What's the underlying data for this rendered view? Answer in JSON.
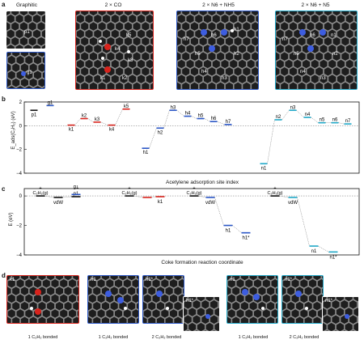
{
  "figure": {
    "panel_labels": [
      "a",
      "b",
      "c",
      "d"
    ],
    "a": {
      "titles": [
        "Graphitic",
        "2 × CO",
        "2 × N6 + NH5",
        "2 × N6 + N5"
      ],
      "graphitic_sites": [
        "p1",
        "g1"
      ],
      "co_sites": [
        "k5",
        "k4",
        "k3",
        "k1",
        "k2"
      ],
      "nh5_sites": [
        "h7",
        "h6",
        "h1",
        "h5",
        "h2",
        "h4",
        "h3"
      ],
      "n5_sites": [
        "n7",
        "n6",
        "n1",
        "n5",
        "n2",
        "n4",
        "n3"
      ]
    },
    "b": {
      "ylabel": "E_ads(C₂H₂) (eV)",
      "xlabel": "Acetylene adsorption site index",
      "ylim": [
        -4,
        2
      ],
      "yticks": [
        "2",
        "0",
        "−2",
        "−4"
      ]
    },
    "c": {
      "ylabel": "E (eV)",
      "xlabel": "Coke formation reaction coordinate",
      "yticks": [
        "0",
        "−2",
        "−4"
      ],
      "annot_defect": "Defect",
      "annot_plus": "+",
      "annot_c2h2": "C₂H₂(g)",
      "annot_vdw": "vdW"
    },
    "d": {
      "captions": [
        "1 C₂H₂ bonded",
        "1 C₂H₂ bonded",
        "2 C₂H₂ bonded",
        "1 C₂H₂ bonded",
        "2 C₂H₂ bonded"
      ],
      "tile_labels": [
        "k1",
        "h1",
        "h1*",
        "h1*",
        "n1",
        "n1*",
        "n1*"
      ]
    },
    "colors": {
      "graphitic": "#2a56c6",
      "co": "#d8231c",
      "nh5": "#2a56c6",
      "n5": "#20a8c8",
      "dark": "#111111"
    }
  },
  "chart_data": [
    {
      "type": "line",
      "title": "",
      "ylabel": "E_ads(C₂H₂) (eV)",
      "xlabel": "Acetylene adsorption site index",
      "ylim": [
        -4,
        2
      ],
      "series": [
        {
          "name": "",
          "color": "#111111",
          "x": [
            "p1"
          ],
          "values": [
            1.3
          ]
        },
        {
          "name": "",
          "color": "#2a56c6",
          "x": [
            "g1"
          ],
          "values": [
            1.7
          ]
        },
        {
          "name": "",
          "color": "#d8231c",
          "x": [
            "k1",
            "k2",
            "k3",
            "k4",
            "k5"
          ],
          "values": [
            0.05,
            0.6,
            0.3,
            0.05,
            1.4
          ]
        },
        {
          "name": "",
          "color": "#2a56c6",
          "x": [
            "h1",
            "h2",
            "h3",
            "h4",
            "h5",
            "h6",
            "h7"
          ],
          "values": [
            -1.9,
            -0.2,
            1.3,
            0.8,
            0.6,
            0.35,
            0.1
          ]
        },
        {
          "name": "",
          "color": "#20a8c8",
          "x": [
            "n1",
            "n2",
            "n3",
            "n4",
            "n5",
            "n6",
            "n7"
          ],
          "values": [
            -3.2,
            0.5,
            1.3,
            0.7,
            0.25,
            0.25,
            0.15
          ]
        }
      ]
    },
    {
      "type": "line",
      "title": "",
      "ylabel": "E (eV)",
      "xlabel": "Coke formation reaction coordinate",
      "ylim": [
        -4,
        0.5
      ],
      "series": [
        {
          "name": "",
          "color": "#111111",
          "labels": [
            "",
            "vdW",
            "p1"
          ],
          "values": [
            0,
            -0.1,
            -0.05
          ]
        },
        {
          "name": "",
          "color": "#2a56c6",
          "labels": [
            "g1"
          ],
          "values": [
            0.1
          ]
        },
        {
          "name": "",
          "color": "#d8231c",
          "labels": [
            "",
            "",
            "k1"
          ],
          "values": [
            0,
            -0.1,
            -0.05
          ]
        },
        {
          "name": "",
          "color": "#2a56c6",
          "labels": [
            "",
            "vdW",
            "h1",
            "h1*"
          ],
          "values": [
            0,
            -0.1,
            -2.0,
            -2.5
          ]
        },
        {
          "name": "",
          "color": "#20a8c8",
          "labels": [
            "",
            "vdW",
            "n1",
            "n1*"
          ],
          "values": [
            0,
            -0.1,
            -3.4,
            -3.8
          ]
        }
      ]
    }
  ]
}
